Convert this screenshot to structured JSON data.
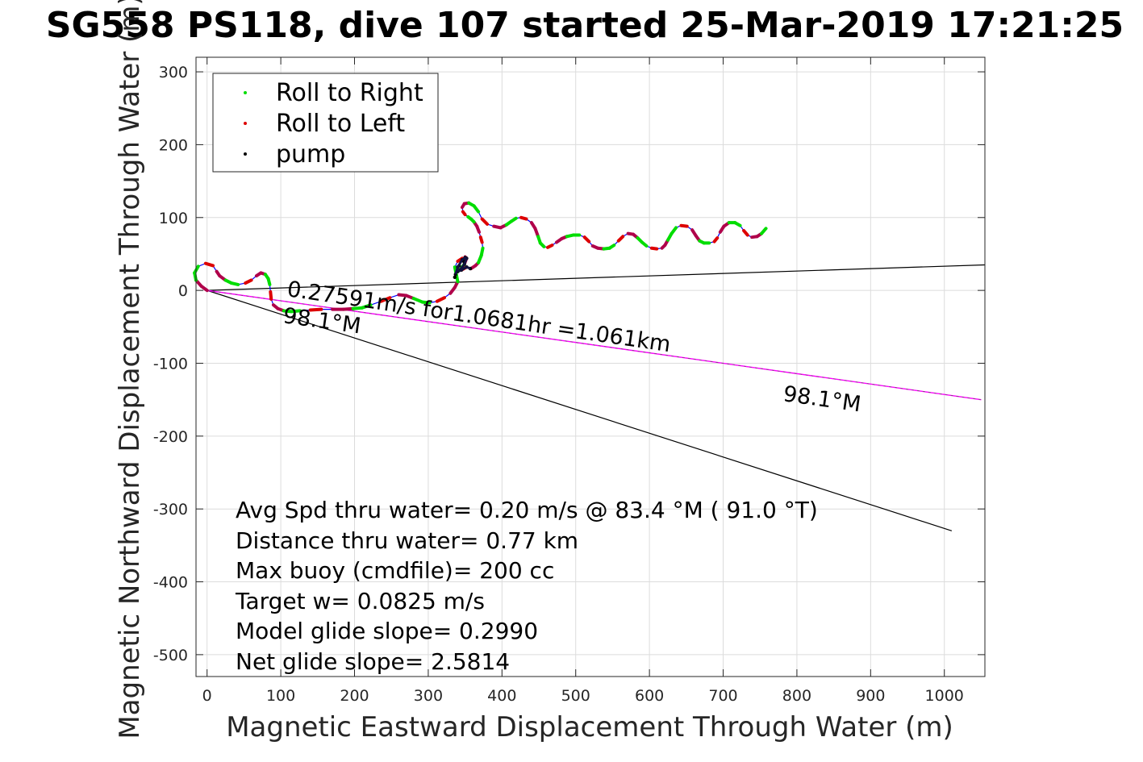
{
  "chart_data": {
    "type": "line",
    "title": "SG558 PS118, dive 107 started 25-Mar-2019 17:21:25",
    "xlabel": "Magnetic Eastward Displacement Through Water (m)",
    "ylabel": "Magnetic Northward Displacement Through Water (m)",
    "xlim": [
      -15,
      1055
    ],
    "ylim": [
      -530,
      320
    ],
    "xticks": [
      0,
      100,
      200,
      300,
      400,
      500,
      600,
      700,
      800,
      900,
      1000
    ],
    "yticks": [
      -500,
      -400,
      -300,
      -200,
      -100,
      0,
      100,
      200,
      300
    ],
    "grid": true,
    "legend": {
      "placement": "top-left",
      "entries": [
        {
          "label": "Roll to Right",
          "color": "#00dd00"
        },
        {
          "label": "Roll to Left",
          "color": "#dd0000"
        },
        {
          "label": "pump",
          "color": "#000000"
        }
      ]
    },
    "colors": {
      "track": "#0000ff",
      "roll_right": "#00dd00",
      "roll_left": "#dd0000",
      "pump": "#000000",
      "overlap": "#b0004a",
      "current_line": "#ff00ff",
      "ref_line": "#000000"
    },
    "track": [
      [
        0,
        0
      ],
      [
        -8,
        6
      ],
      [
        -15,
        14
      ],
      [
        -17,
        24
      ],
      [
        -12,
        33
      ],
      [
        -2,
        37
      ],
      [
        8,
        34
      ],
      [
        13,
        26
      ],
      [
        17,
        20
      ],
      [
        25,
        14
      ],
      [
        33,
        10
      ],
      [
        42,
        8
      ],
      [
        52,
        10
      ],
      [
        60,
        14
      ],
      [
        67,
        20
      ],
      [
        73,
        24
      ],
      [
        79,
        22
      ],
      [
        83,
        16
      ],
      [
        85,
        8
      ],
      [
        86,
        -2
      ],
      [
        87,
        -12
      ],
      [
        90,
        -20
      ],
      [
        96,
        -25
      ],
      [
        104,
        -28
      ],
      [
        114,
        -29
      ],
      [
        126,
        -28
      ],
      [
        140,
        -27
      ],
      [
        155,
        -26
      ],
      [
        170,
        -26
      ],
      [
        185,
        -26
      ],
      [
        198,
        -25
      ],
      [
        210,
        -24
      ],
      [
        222,
        -20
      ],
      [
        236,
        -15
      ],
      [
        248,
        -10
      ],
      [
        260,
        -6
      ],
      [
        270,
        -7
      ],
      [
        280,
        -11
      ],
      [
        292,
        -16
      ],
      [
        302,
        -17
      ],
      [
        312,
        -15
      ],
      [
        322,
        -10
      ],
      [
        330,
        -4
      ],
      [
        336,
        4
      ],
      [
        340,
        12
      ],
      [
        338,
        22
      ],
      [
        336,
        32
      ],
      [
        340,
        40
      ],
      [
        346,
        44
      ],
      [
        350,
        46
      ],
      [
        352,
        44
      ],
      [
        349,
        36
      ],
      [
        343,
        28
      ],
      [
        340,
        26
      ],
      [
        345,
        28
      ],
      [
        352,
        32
      ],
      [
        358,
        30
      ],
      [
        364,
        34
      ],
      [
        368,
        38
      ],
      [
        372,
        48
      ],
      [
        374,
        58
      ],
      [
        373,
        66
      ],
      [
        371,
        73
      ],
      [
        369,
        80
      ],
      [
        366,
        88
      ],
      [
        362,
        94
      ],
      [
        358,
        98
      ],
      [
        354,
        101
      ],
      [
        350,
        104
      ],
      [
        347,
        108
      ],
      [
        346,
        114
      ],
      [
        349,
        119
      ],
      [
        355,
        120
      ],
      [
        362,
        116
      ],
      [
        368,
        108
      ],
      [
        373,
        98
      ],
      [
        380,
        91
      ],
      [
        389,
        88
      ],
      [
        398,
        86
      ],
      [
        406,
        90
      ],
      [
        413,
        95
      ],
      [
        419,
        99
      ],
      [
        426,
        100
      ],
      [
        433,
        98
      ],
      [
        440,
        93
      ],
      [
        445,
        85
      ],
      [
        449,
        74
      ],
      [
        452,
        65
      ],
      [
        457,
        60
      ],
      [
        462,
        59
      ],
      [
        468,
        62
      ],
      [
        474,
        66
      ],
      [
        481,
        71
      ],
      [
        488,
        74
      ],
      [
        497,
        76
      ],
      [
        505,
        76
      ],
      [
        512,
        73
      ],
      [
        518,
        67
      ],
      [
        523,
        61
      ],
      [
        530,
        58
      ],
      [
        538,
        57
      ],
      [
        546,
        58
      ],
      [
        552,
        62
      ],
      [
        558,
        68
      ],
      [
        564,
        74
      ],
      [
        571,
        78
      ],
      [
        578,
        77
      ],
      [
        584,
        72
      ],
      [
        590,
        66
      ],
      [
        596,
        61
      ],
      [
        603,
        58
      ],
      [
        610,
        57
      ],
      [
        617,
        58
      ],
      [
        621,
        62
      ],
      [
        625,
        69
      ],
      [
        630,
        78
      ],
      [
        636,
        86
      ],
      [
        643,
        89
      ],
      [
        651,
        88
      ],
      [
        658,
        83
      ],
      [
        663,
        75
      ],
      [
        668,
        68
      ],
      [
        674,
        65
      ],
      [
        681,
        65
      ],
      [
        688,
        67
      ],
      [
        692,
        72
      ],
      [
        696,
        80
      ],
      [
        701,
        88
      ],
      [
        708,
        93
      ],
      [
        716,
        93
      ],
      [
        723,
        89
      ],
      [
        728,
        82
      ],
      [
        733,
        76
      ],
      [
        739,
        73
      ],
      [
        746,
        74
      ],
      [
        752,
        78
      ],
      [
        758,
        85
      ]
    ],
    "pump_points": [
      [
        337,
        22
      ],
      [
        340,
        32
      ],
      [
        346,
        42
      ],
      [
        350,
        45
      ],
      [
        352,
        44
      ],
      [
        349,
        36
      ],
      [
        343,
        28
      ],
      [
        340,
        26
      ],
      [
        345,
        28
      ],
      [
        352,
        32
      ],
      [
        357,
        30
      ],
      [
        336,
        18
      ],
      [
        342,
        34
      ],
      [
        348,
        40
      ]
    ],
    "depth_avg_current_line": {
      "from": [
        0,
        0
      ],
      "to": [
        1050,
        -150
      ],
      "label_values": [
        "98.1°M"
      ]
    },
    "reference_lines": [
      {
        "from": [
          0,
          0
        ],
        "to": [
          1060,
          35
        ]
      },
      {
        "from": [
          0,
          0
        ],
        "to": [
          1010,
          -330
        ]
      }
    ],
    "line_annotation": "0.27591m/s for1.0681hr =1.061km",
    "heading_label_1": "98.1°M",
    "heading_label_2": "98.1°M",
    "stats": [
      "Avg Spd thru water=  0.20 m/s @  83.4 °M ( 91.0 °T)",
      "Distance thru water=  0.77 km",
      "Max buoy (cmdfile)= 200 cc",
      "Target w= 0.0825 m/s",
      "Model glide slope= 0.2990",
      "Net glide slope= 2.5814"
    ]
  }
}
